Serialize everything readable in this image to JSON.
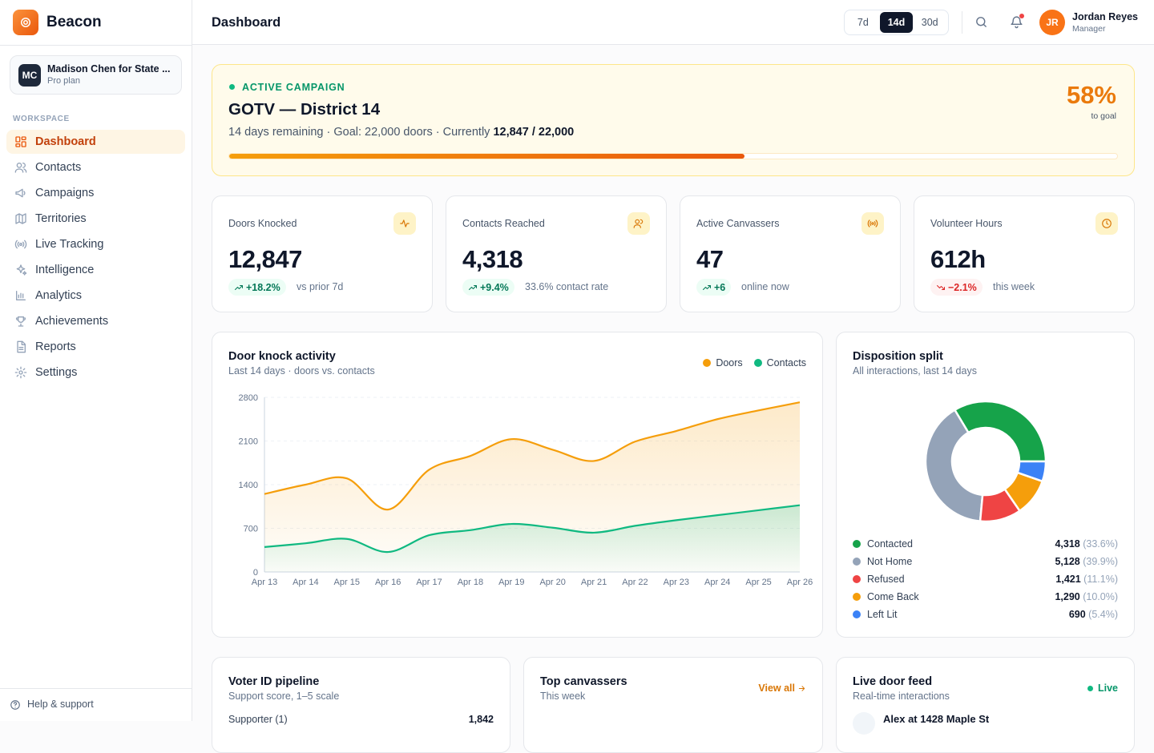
{
  "brand": "Beacon",
  "organization": {
    "initials": "MC",
    "name": "Madison Chen for State ...",
    "plan": "Pro plan"
  },
  "nav": {
    "section": "WORKSPACE",
    "items": [
      "Dashboard",
      "Contacts",
      "Campaigns",
      "Territories",
      "Live Tracking",
      "Intelligence",
      "Analytics",
      "Achievements",
      "Reports",
      "Settings"
    ]
  },
  "help": "Help & support",
  "header": {
    "title": "Dashboard",
    "ranges": [
      "7d",
      "14d",
      "30d"
    ],
    "user": {
      "initials": "JR",
      "name": "Jordan Reyes",
      "role": "Manager"
    }
  },
  "campaign": {
    "status": "ACTIVE CAMPAIGN",
    "title": "GOTV — District 14",
    "summary": "14 days remaining · Goal: 22,000 doors · Currently",
    "current": "12,847 / 22,000",
    "progress": {
      "value": 58,
      "label": "58%"
    },
    "progress_note": "to goal"
  },
  "kpis": [
    {
      "label": "Doors Knocked",
      "value": "12,847",
      "delta": "+18.2%",
      "trend": "up",
      "note": "vs prior 7d"
    },
    {
      "label": "Contacts Reached",
      "value": "4,318",
      "delta": "+9.4%",
      "trend": "up",
      "note": "33.6% contact rate"
    },
    {
      "label": "Active Canvassers",
      "value": "47",
      "delta": "+6",
      "trend": "up",
      "note": "online now"
    },
    {
      "label": "Volunteer Hours",
      "value": "612h",
      "delta": "−2.1%",
      "trend": "down",
      "note": "this week"
    }
  ],
  "chart_data": [
    {
      "type": "line",
      "area": true,
      "title": "Door knock activity",
      "subtitle": "Last 14 days · doors vs. contacts",
      "categories": [
        "Apr 13",
        "Apr 14",
        "Apr 15",
        "Apr 16",
        "Apr 17",
        "Apr 18",
        "Apr 19",
        "Apr 20",
        "Apr 21",
        "Apr 22",
        "Apr 23",
        "Apr 24",
        "Apr 25",
        "Apr 26"
      ],
      "series": [
        {
          "name": "Doors",
          "color": "#f59e0b",
          "values": [
            1250,
            1400,
            1500,
            1000,
            1640,
            1860,
            2130,
            1960,
            1780,
            2090,
            2260,
            2450,
            2590,
            2720
          ]
        },
        {
          "name": "Contacts",
          "color": "#10b981",
          "values": [
            400,
            460,
            530,
            320,
            590,
            670,
            770,
            710,
            630,
            740,
            830,
            910,
            990,
            1070
          ]
        }
      ],
      "ylim": [
        0,
        2800
      ],
      "yticks": [
        0,
        700,
        1400,
        2100,
        2800
      ],
      "grid": true,
      "legend": "top-right"
    },
    {
      "type": "donut",
      "title": "Disposition split",
      "subtitle": "All interactions, last 14 days",
      "categories": [
        "Contacted",
        "Not Home",
        "Refused",
        "Come Back",
        "Left Lit"
      ],
      "values": [
        4318,
        5128,
        1421,
        1290,
        690
      ],
      "value_labels": [
        "4,318",
        "5,128",
        "1,421",
        "1,290",
        "690"
      ],
      "share_labels": [
        "(33.6%)",
        "(39.9%)",
        "(11.1%)",
        "(10.0%)",
        "(5.4%)"
      ],
      "colors": [
        "#16a34a",
        "#94a3b8",
        "#ef4444",
        "#f59e0b",
        "#3b82f6"
      ]
    }
  ],
  "panels": {
    "pipeline": {
      "title": "Voter ID pipeline",
      "subtitle": "Support score, 1–5 scale",
      "rows": [
        [
          "Supporter (1)",
          "1,842"
        ]
      ]
    },
    "canvassers": {
      "title": "Top canvassers",
      "subtitle": "This week",
      "action": "View all"
    },
    "feed": {
      "title": "Live door feed",
      "subtitle": "Real-time interactions",
      "status": "Live",
      "items": [
        "Alex at 1428 Maple St"
      ]
    }
  }
}
